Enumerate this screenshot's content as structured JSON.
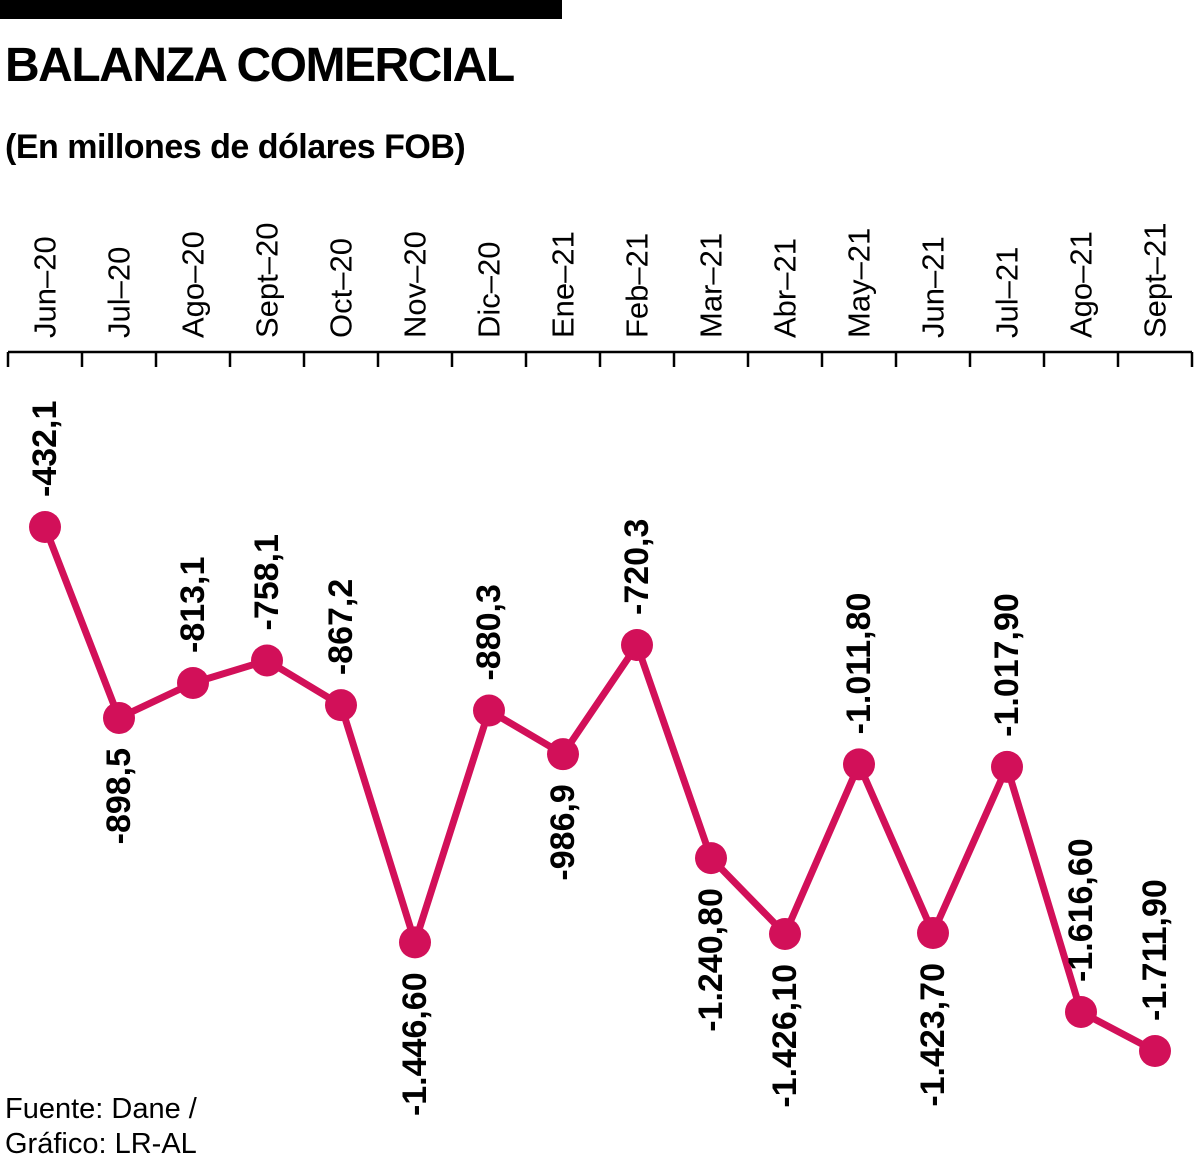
{
  "header": {
    "title": "BALANZA COMERCIAL",
    "subtitle": "(En millones de dólares FOB)"
  },
  "footer": {
    "source_line1": "Fuente: Dane /",
    "source_line2": "Gráfico: LR-AL"
  },
  "chart_data": {
    "type": "line",
    "title": "BALANZA COMERCIAL",
    "subtitle": "(En millones de dólares FOB)",
    "unit": "millones de dólares FOB",
    "categories": [
      "Jun–20",
      "Jul–20",
      "Ago–20",
      "Sept–20",
      "Oct–20",
      "Nov–20",
      "Dic–20",
      "Ene–21",
      "Feb–21",
      "Mar–21",
      "Abr–21",
      "May–21",
      "Jun–21",
      "Jul–21",
      "Ago–21",
      "Sept–21"
    ],
    "values": [
      -432.1,
      -898.5,
      -813.1,
      -758.1,
      -867.2,
      -1446.6,
      -880.3,
      -986.9,
      -720.3,
      -1240.8,
      -1426.1,
      -1011.8,
      -1423.7,
      -1017.9,
      -1616.6,
      -1711.9
    ],
    "value_labels": [
      "-432,1",
      "-898,5",
      "-813,1",
      "-758,1",
      "-867,2",
      "-1.446,60",
      "-880,3",
      "-986,9",
      "-720,3",
      "-1.240,80",
      "-1.426,10",
      "-1.011,80",
      "-1.423,70",
      "-1.017,90",
      "-1.616,60",
      "-1.711,90"
    ],
    "label_side": [
      "above",
      "below",
      "above",
      "above",
      "above",
      "below",
      "above",
      "below",
      "above",
      "below",
      "below",
      "above",
      "below",
      "above",
      "above",
      "above"
    ],
    "line_color": "#d21059",
    "axis_color": "#000000",
    "label_rotation": -90,
    "x_labels_position": "top",
    "ylim": [
      -1800,
      -400
    ],
    "grid": false,
    "legend": false
  }
}
